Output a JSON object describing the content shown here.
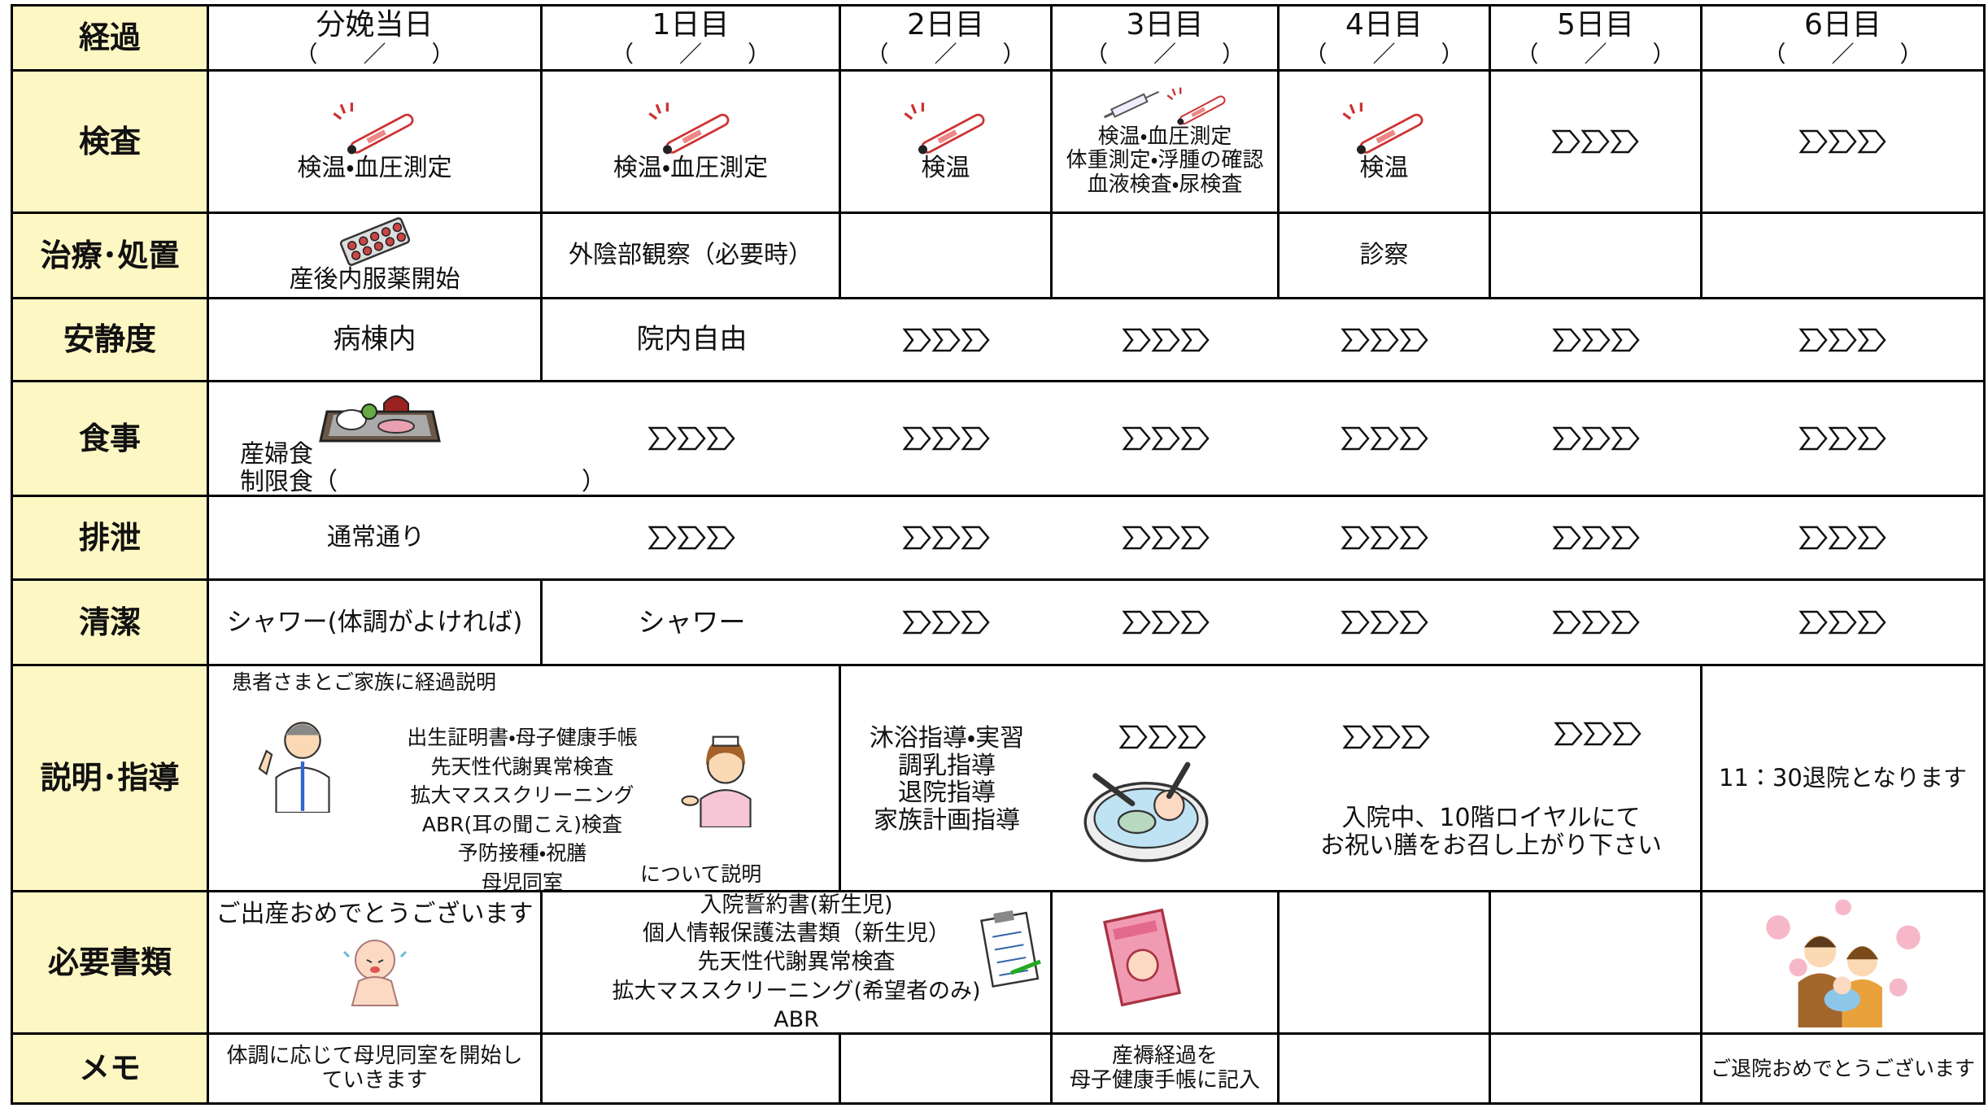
{
  "header": {
    "label": "経過",
    "days": [
      {
        "name": "分娩当日",
        "date": "（　　／　　）"
      },
      {
        "name": "1日目",
        "date": "（　　／　　）"
      },
      {
        "name": "2日目",
        "date": "（　　／　　）"
      },
      {
        "name": "3日目",
        "date": "（　　／　　）"
      },
      {
        "name": "4日目",
        "date": "（　　／　　）"
      },
      {
        "name": "5日目",
        "date": "（　　／　　）"
      },
      {
        "name": "6日目",
        "date": "（　　／　　）"
      }
    ]
  },
  "rows": [
    {
      "label": "検査",
      "cells": [
        [
          "検温・血圧測定"
        ],
        [
          "検温・血圧測定"
        ],
        [
          "検温"
        ],
        [
          "検温・血圧測定",
          "体重測定・浮腫の確認",
          "血液検査・尿検査"
        ],
        [
          "検温"
        ]
      ]
    },
    {
      "label": "治療･処置",
      "cells": [
        [
          "産後内服薬開始"
        ],
        [
          "外陰部観察（必要時）"
        ],
        [
          "診察"
        ]
      ]
    },
    {
      "label": "安静度",
      "cells": [
        [
          "病棟内"
        ],
        [
          "院内自由"
        ]
      ]
    },
    {
      "label": "食事",
      "cells": [
        [
          "産婦食",
          "制限食（　　　　　　　　　　）"
        ]
      ]
    },
    {
      "label": "排泄",
      "cells": [
        [
          "通常通り"
        ]
      ]
    },
    {
      "label": "清潔",
      "cells": [
        [
          "シャワー(体調がよければ)"
        ],
        [
          "シャワー"
        ]
      ]
    },
    {
      "label": "説明･指導",
      "cells": [
        [
          "患者さまとご家族に経過説明",
          "出生証明書・母子健康手帳",
          "先天性代謝異常検査",
          "拡大マススクリーニング",
          "ABR(耳の聞こえ)検査",
          "予防接種・祝膳",
          "母児同室",
          "について説明"
        ],
        [
          "沐浴指導・実習",
          "調乳指導",
          "退院指導",
          "家族計画指導"
        ],
        [
          "入院中、10階ロイヤルにて",
          "お祝い膳をお召し上がり下さい"
        ],
        [
          "11：30退院となります"
        ]
      ]
    },
    {
      "label": "必要書類",
      "cells": [
        [
          "ご出産おめでとうございます"
        ],
        [
          "入院誓約書(新生児)",
          "個人情報保護法書類（新生児）",
          "先天性代謝異常検査",
          "拡大マススクリーニング(希望者のみ)",
          "ABR"
        ]
      ]
    },
    {
      "label": "メモ",
      "cells": [
        [
          "体調に応じて母児同室を開始し",
          "ていきます"
        ],
        [
          "産褥経過を",
          "母子健康手帳に記入"
        ],
        [
          "ご退院おめでとうございます"
        ]
      ]
    }
  ]
}
